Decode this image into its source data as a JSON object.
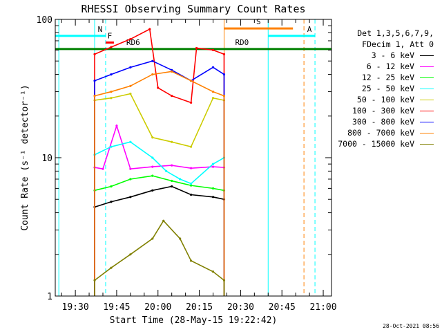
{
  "chart_data": {
    "type": "line",
    "title": "RHESSI Observing Summary Count Rates",
    "xlabel": "Start Time (28-May-15 19:22:42)",
    "ylabel": "Count Rate (s⁻¹ detector⁻¹)",
    "y_scale": "log",
    "ylim": [
      1,
      100
    ],
    "y_ticks": [
      "1",
      "10",
      "100"
    ],
    "xlim": [
      "19:22:42",
      "21:03:00"
    ],
    "x_ticks": [
      "19:30",
      "19:45",
      "20:00",
      "20:15",
      "20:30",
      "20:45",
      "21:00"
    ],
    "legend": {
      "position": "right",
      "header": [
        "Det 1,3,5,6,7,9,",
        "FDecim 1, Att 0"
      ]
    },
    "series": [
      {
        "name": "3 - 6 keV",
        "color": "#000000",
        "x": [
          "19:37",
          "19:43",
          "19:50",
          "19:58",
          "20:05",
          "20:12",
          "20:20",
          "20:24"
        ],
        "y": [
          4.4,
          4.8,
          5.2,
          5.8,
          6.2,
          5.4,
          5.2,
          5.0
        ]
      },
      {
        "name": "6 - 12 keV",
        "color": "#ff00ff",
        "x": [
          "19:37",
          "19:40",
          "19:45",
          "19:50",
          "19:58",
          "20:05",
          "20:12",
          "20:20",
          "20:24"
        ],
        "y": [
          8.5,
          8.3,
          17.0,
          8.3,
          8.6,
          8.8,
          8.4,
          8.6,
          8.5
        ]
      },
      {
        "name": "12 - 25 keV",
        "color": "#00ff00",
        "x": [
          "19:37",
          "19:43",
          "19:50",
          "19:58",
          "20:05",
          "20:12",
          "20:20",
          "20:24"
        ],
        "y": [
          5.8,
          6.2,
          7.0,
          7.4,
          6.8,
          6.3,
          6.0,
          5.8
        ]
      },
      {
        "name": "25 - 50 keV",
        "color": "#00ffff",
        "x": [
          "19:37",
          "19:43",
          "19:50",
          "19:58",
          "20:03",
          "20:08",
          "20:12",
          "20:20",
          "20:24"
        ],
        "y": [
          10.5,
          12.0,
          13.0,
          10.0,
          8.0,
          7.0,
          6.5,
          9.0,
          10.0
        ]
      },
      {
        "name": "50 - 100 keV",
        "color": "#cccc00",
        "x": [
          "19:37",
          "19:43",
          "19:50",
          "19:58",
          "20:05",
          "20:12",
          "20:20",
          "20:24"
        ],
        "y": [
          26,
          27,
          29,
          14,
          13,
          12,
          27,
          26
        ]
      },
      {
        "name": "100 - 300 keV",
        "color": "#ff0000",
        "x": [
          "19:37",
          "19:43",
          "19:50",
          "19:57",
          "20:00",
          "20:05",
          "20:12",
          "20:14",
          "20:20",
          "20:24"
        ],
        "y": [
          56,
          63,
          72,
          85,
          32,
          28,
          25,
          62,
          60,
          56
        ]
      },
      {
        "name": "300 - 800 keV",
        "color": "#0000ff",
        "x": [
          "19:37",
          "19:43",
          "19:50",
          "19:58",
          "20:05",
          "20:12",
          "20:20",
          "20:24"
        ],
        "y": [
          36,
          40,
          45,
          50,
          43,
          36,
          45,
          40
        ]
      },
      {
        "name": "800 - 7000 keV",
        "color": "#ff8000",
        "x": [
          "19:37",
          "19:43",
          "19:50",
          "19:58",
          "20:05",
          "20:12",
          "20:20",
          "20:24"
        ],
        "y": [
          28,
          30,
          33,
          40,
          42,
          36,
          30,
          28
        ]
      },
      {
        "name": "7000 - 15000 keV",
        "color": "#808000",
        "x": [
          "19:37",
          "19:43",
          "19:50",
          "19:58",
          "20:02",
          "20:08",
          "20:12",
          "20:20",
          "20:24"
        ],
        "y": [
          1.3,
          1.6,
          2.0,
          2.6,
          3.5,
          2.6,
          1.8,
          1.5,
          1.3
        ]
      }
    ],
    "flag_lines": [
      {
        "label": "N",
        "color": "#00ffff",
        "x": [
          "19:22:42",
          "19:41"
        ],
        "y": 76
      },
      {
        "label": "F",
        "color": "#ff0000",
        "x": [
          "19:41",
          "19:44"
        ],
        "y": 68
      },
      {
        "label": "RD6",
        "color": "#008000",
        "x": [
          "19:22:42",
          "19:58"
        ],
        "y": 61
      },
      {
        "label": "RD0",
        "color": "#008000",
        "x": [
          "19:58",
          "21:03:00"
        ],
        "y": 61
      },
      {
        "label": "S",
        "color": "#ff8000",
        "x": [
          "20:24",
          "20:49"
        ],
        "y": 86
      },
      {
        "label": "A",
        "color": "#00ffff",
        "x": [
          "20:40",
          "20:57"
        ],
        "y": 76
      }
    ],
    "vlines": [
      {
        "x": "19:24",
        "color": "#00ffff",
        "style": "solid"
      },
      {
        "x": "19:37",
        "color": "#00ffff",
        "style": "solid"
      },
      {
        "x": "19:41",
        "color": "#00ffff",
        "style": "dashed"
      },
      {
        "x": "20:24",
        "color": "#ff8000",
        "style": "solid"
      },
      {
        "x": "20:40",
        "color": "#00ffff",
        "style": "solid"
      },
      {
        "x": "20:53",
        "color": "#ff8000",
        "style": "dashed"
      },
      {
        "x": "20:57",
        "color": "#00ffff",
        "style": "dashed"
      }
    ]
  },
  "timestamp": "28-Oct-2021 08:56"
}
